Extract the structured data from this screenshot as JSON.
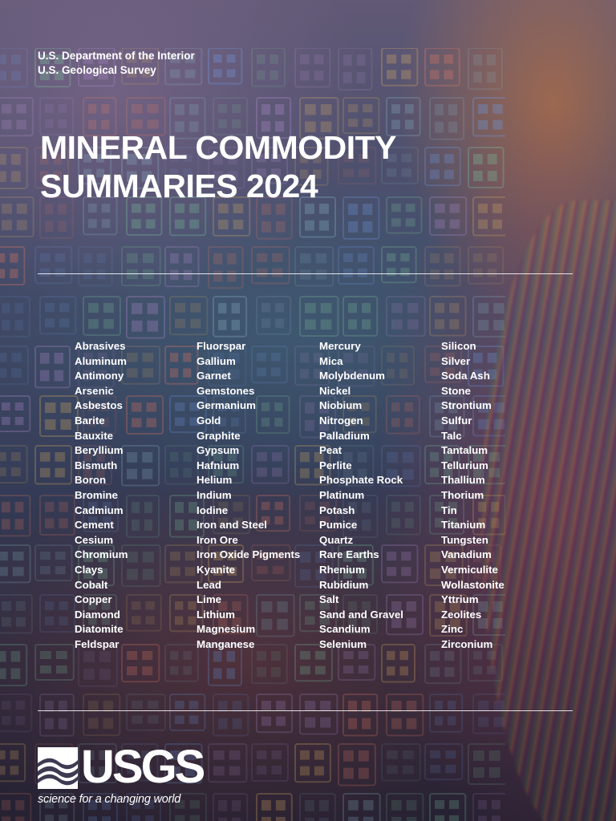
{
  "agency": {
    "line1": "U.S. Department of the Interior",
    "line2": "U.S. Geological Survey"
  },
  "title": {
    "line1": "MINERAL COMMODITY",
    "line2": "SUMMARIES 2024"
  },
  "commodities": {
    "col1": [
      "Abrasives",
      "Aluminum",
      "Antimony",
      "Arsenic",
      "Asbestos",
      "Barite",
      "Bauxite",
      "Beryllium",
      "Bismuth",
      "Boron",
      "Bromine",
      "Cadmium",
      "Cement",
      "Cesium",
      "Chromium",
      "Clays",
      "Cobalt",
      "Copper",
      "Diamond",
      "Diatomite",
      "Feldspar"
    ],
    "col2": [
      "Fluorspar",
      "Gallium",
      "Garnet",
      "Gemstones",
      "Germanium",
      "Gold",
      "Graphite",
      "Gypsum",
      "Hafnium",
      "Helium",
      "Indium",
      "Iodine",
      "Iron and Steel",
      "Iron Ore",
      "Iron Oxide Pigments",
      "Kyanite",
      "Lead",
      "Lime",
      "Lithium",
      "Magnesium",
      "Manganese"
    ],
    "col3": [
      "Mercury",
      "Mica",
      "Molybdenum",
      "Nickel",
      "Niobium",
      "Nitrogen",
      "Palladium",
      "Peat",
      "Perlite",
      "Phosphate Rock",
      "Platinum",
      "Potash",
      "Pumice",
      "Quartz",
      "Rare Earths",
      "Rhenium",
      "Rubidium",
      "Salt",
      "Sand and Gravel",
      "Scandium",
      "Selenium"
    ],
    "col4": [
      "Silicon",
      "Silver",
      "Soda Ash",
      "Stone",
      "Strontium",
      "Sulfur",
      "Talc",
      "Tantalum",
      "Tellurium",
      "Thallium",
      "Thorium",
      "Tin",
      "Titanium",
      "Tungsten",
      "Vanadium",
      "Vermiculite",
      "Wollastonite",
      "Yttrium",
      "Zeolites",
      "Zinc",
      "Zirconium"
    ]
  },
  "logo": {
    "wordmark": "USGS",
    "tagline": "science for a changing world",
    "icon": "usgs-waves-icon"
  },
  "colors": {
    "text": "#ffffff",
    "rule": "#ffffff"
  }
}
